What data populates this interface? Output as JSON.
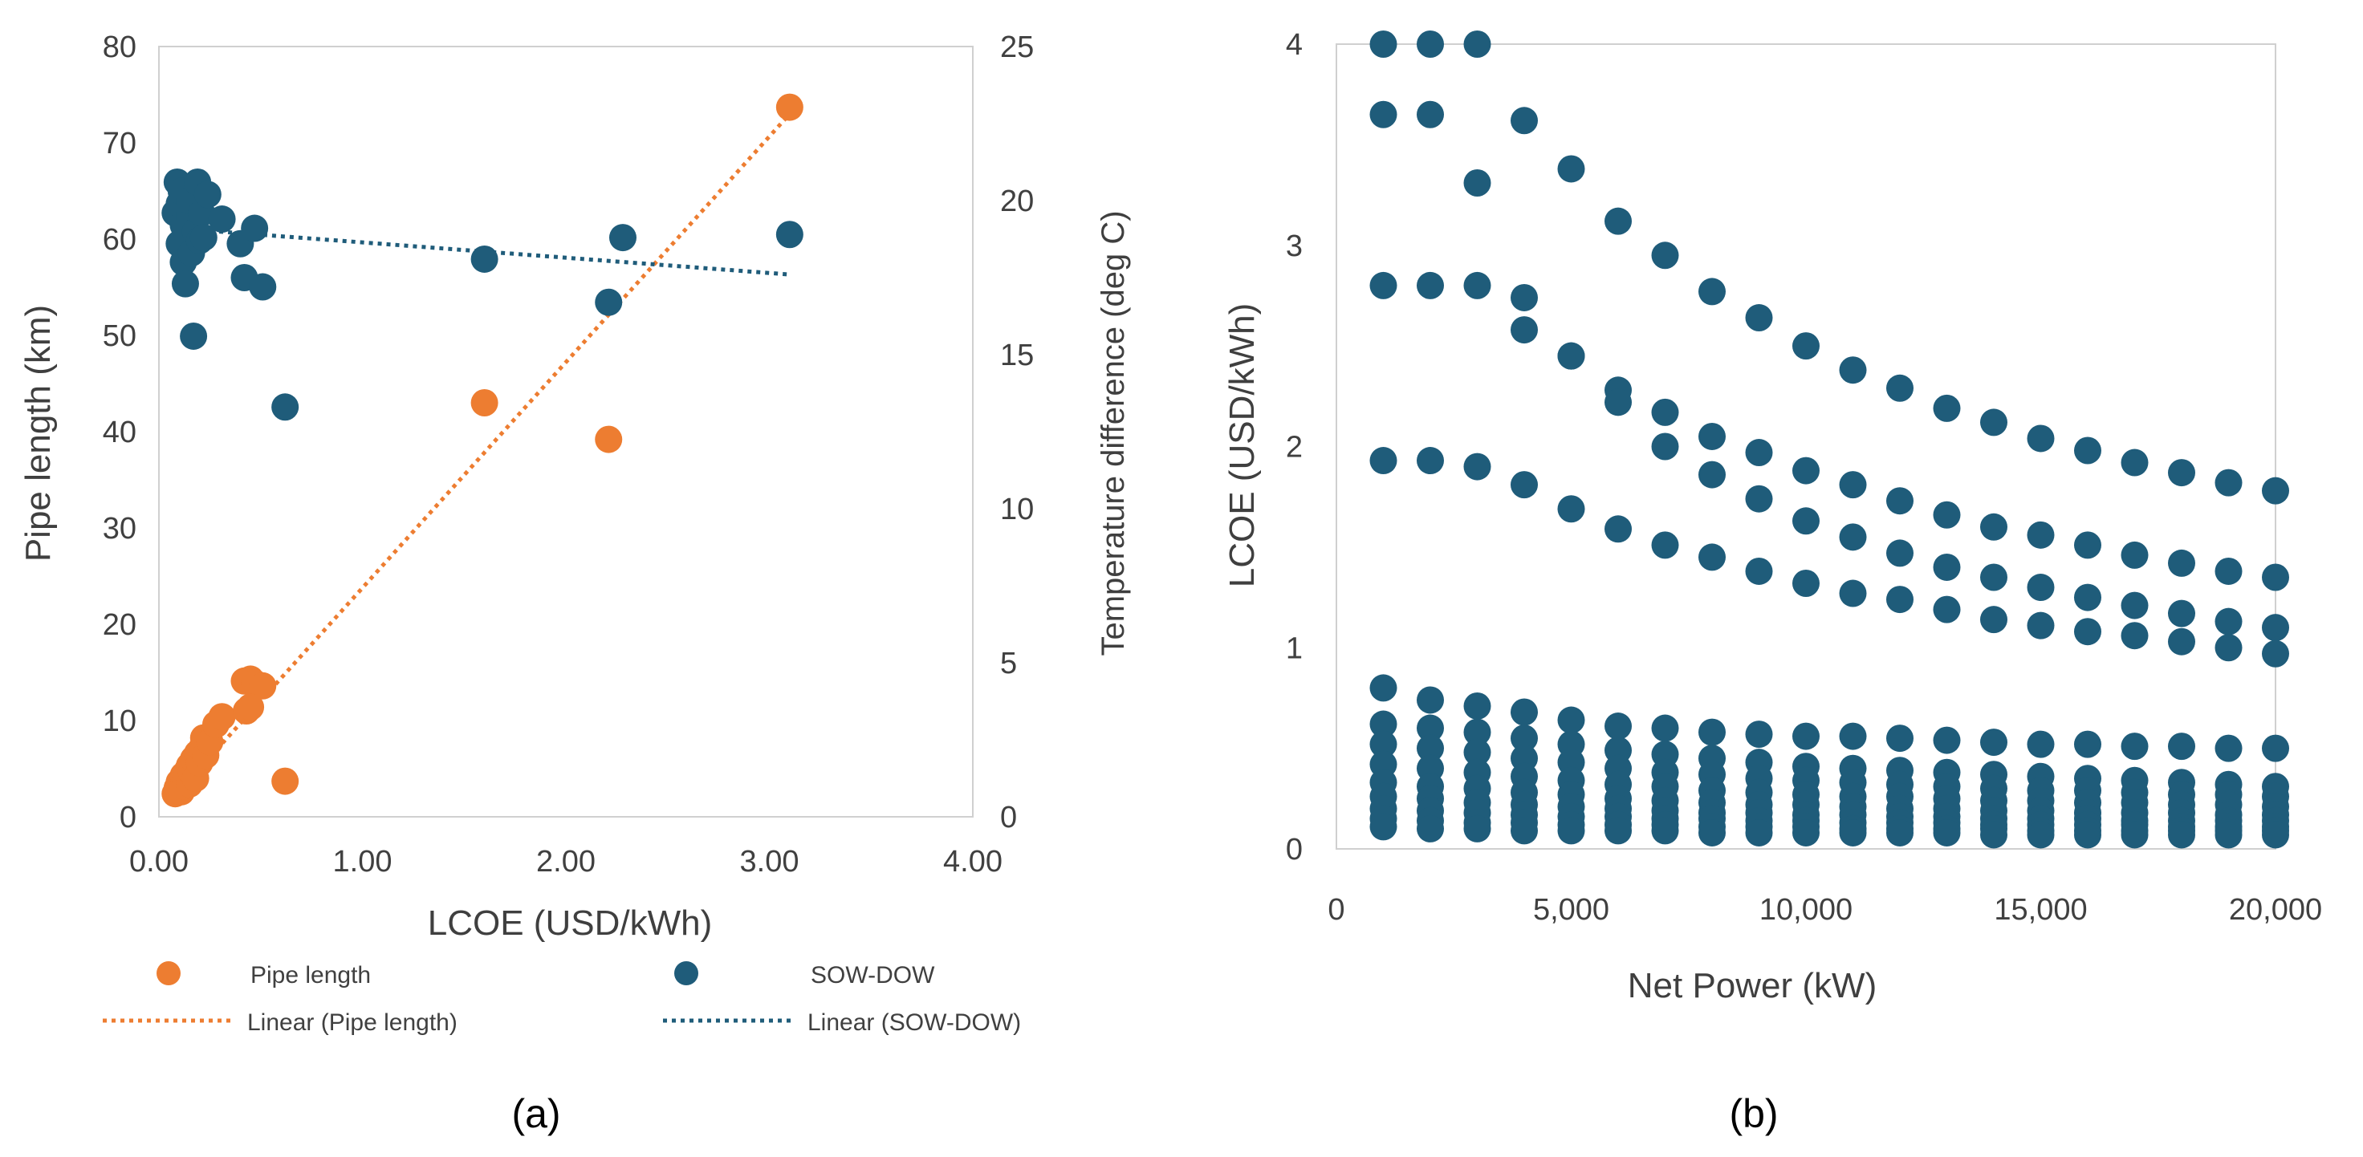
{
  "figure": {
    "captions": [
      "(a)",
      "(b)"
    ],
    "colors": {
      "orange": "#ED7D31",
      "blue": "#1F5C7A",
      "axis": "#d0d0d0",
      "text": "#404040"
    }
  },
  "chart_data": [
    {
      "type": "scatter",
      "panel": "(a)",
      "xlabel": "LCOE (USD/kWh)",
      "ylabel": "Pipe length (km)",
      "y2label": "Temperature difference (deg C)",
      "xlim": [
        0,
        4
      ],
      "ylim": [
        0,
        80
      ],
      "y2lim": [
        0,
        25
      ],
      "x_ticks": [
        "0.00",
        "1.00",
        "2.00",
        "3.00",
        "4.00"
      ],
      "y_ticks": [
        "0",
        "10",
        "20",
        "30",
        "40",
        "50",
        "60",
        "70",
        "80"
      ],
      "y2_ticks": [
        "0",
        "5",
        "10",
        "15",
        "20",
        "25"
      ],
      "grid": false,
      "legend_position": "bottom",
      "series": [
        {
          "name": "Pipe length",
          "axis": "left",
          "color": "#ED7D31",
          "marker": "circle",
          "points": [
            [
              0.08,
              2.4
            ],
            [
              0.09,
              3.0
            ],
            [
              0.1,
              2.7
            ],
            [
              0.1,
              3.6
            ],
            [
              0.11,
              2.6
            ],
            [
              0.12,
              3.2
            ],
            [
              0.12,
              4.3
            ],
            [
              0.13,
              3.9
            ],
            [
              0.14,
              4.8
            ],
            [
              0.15,
              3.4
            ],
            [
              0.15,
              5.3
            ],
            [
              0.16,
              4.6
            ],
            [
              0.17,
              6.0
            ],
            [
              0.18,
              4.0
            ],
            [
              0.19,
              6.6
            ],
            [
              0.2,
              5.6
            ],
            [
              0.21,
              7.1
            ],
            [
              0.22,
              8.2
            ],
            [
              0.23,
              6.4
            ],
            [
              0.25,
              7.8
            ],
            [
              0.28,
              9.6
            ],
            [
              0.31,
              10.4
            ],
            [
              0.42,
              14.1
            ],
            [
              0.45,
              14.3
            ],
            [
              0.47,
              13.9
            ],
            [
              0.51,
              13.6
            ],
            [
              0.43,
              11.0
            ],
            [
              0.45,
              11.4
            ],
            [
              0.62,
              3.7
            ],
            [
              1.6,
              43.0
            ],
            [
              2.21,
              39.2
            ],
            [
              3.1,
              73.7
            ]
          ]
        },
        {
          "name": "SOW-DOW",
          "axis": "right",
          "color": "#1F5C7A",
          "marker": "circle",
          "points": [
            [
              0.08,
              19.6
            ],
            [
              0.09,
              20.6
            ],
            [
              0.1,
              18.6
            ],
            [
              0.1,
              19.9
            ],
            [
              0.11,
              20.3
            ],
            [
              0.12,
              19.2
            ],
            [
              0.12,
              18.0
            ],
            [
              0.13,
              17.3
            ],
            [
              0.14,
              18.9
            ],
            [
              0.15,
              19.5
            ],
            [
              0.15,
              20.0
            ],
            [
              0.16,
              18.3
            ],
            [
              0.17,
              15.6
            ],
            [
              0.18,
              19.0
            ],
            [
              0.19,
              20.6
            ],
            [
              0.2,
              18.7
            ],
            [
              0.21,
              19.6
            ],
            [
              0.22,
              18.8
            ],
            [
              0.24,
              20.2
            ],
            [
              0.31,
              19.4
            ],
            [
              0.4,
              18.6
            ],
            [
              0.42,
              17.5
            ],
            [
              0.47,
              19.1
            ],
            [
              0.51,
              17.2
            ],
            [
              0.62,
              13.3
            ],
            [
              1.6,
              18.1
            ],
            [
              2.21,
              16.7
            ],
            [
              2.28,
              18.8
            ],
            [
              3.1,
              18.9
            ]
          ]
        },
        {
          "name": "Linear (Pipe length)",
          "axis": "left",
          "color": "#ED7D31",
          "style": "dotted",
          "points": [
            [
              0.08,
              2.2
            ],
            [
              3.1,
              73.0
            ]
          ]
        },
        {
          "name": "Linear (SOW-DOW)",
          "axis": "right",
          "color": "#1F5C7A",
          "style": "dotted",
          "points": [
            [
              0.08,
              19.1
            ],
            [
              3.1,
              17.6
            ]
          ]
        }
      ]
    },
    {
      "type": "scatter",
      "panel": "(b)",
      "xlabel": "Net Power (kW)",
      "ylabel": "LCOE (USD/kWh)",
      "xlim": [
        0,
        20000
      ],
      "ylim": [
        0,
        4
      ],
      "x_ticks": [
        "0",
        "5,000",
        "10,000",
        "15,000",
        "20,000"
      ],
      "y_ticks": [
        "0",
        "1",
        "2",
        "3",
        "4"
      ],
      "grid": false,
      "series": [
        {
          "name": "",
          "color": "#1F5C7A",
          "marker": "circle",
          "x": [
            1000,
            2000,
            3000,
            4000,
            5000,
            6000,
            7000,
            8000,
            9000,
            10000,
            11000,
            12000,
            13000,
            14000,
            15000,
            16000,
            17000,
            18000,
            19000,
            20000
          ],
          "curves": [
            [
              4.0,
              4.0,
              4.0,
              3.62,
              3.38,
              3.12,
              2.95,
              2.77,
              2.64,
              2.5,
              2.38,
              2.29,
              2.19,
              2.12,
              2.04,
              1.98,
              1.92,
              1.87,
              1.82,
              1.78
            ],
            [
              3.65,
              3.65,
              3.31,
              2.74,
              2.45,
              2.28,
              2.17,
              2.05,
              1.97,
              1.88,
              1.81,
              1.73,
              1.66,
              1.6,
              1.56,
              1.51,
              1.46,
              1.42,
              1.38,
              1.35
            ],
            [
              2.8,
              2.8,
              2.8,
              2.58,
              2.45,
              2.22,
              2.0,
              1.86,
              1.74,
              1.63,
              1.55,
              1.47,
              1.4,
              1.35,
              1.3,
              1.25,
              1.21,
              1.17,
              1.13,
              1.1
            ],
            [
              1.93,
              1.93,
              1.9,
              1.81,
              1.69,
              1.59,
              1.51,
              1.45,
              1.38,
              1.32,
              1.27,
              1.24,
              1.19,
              1.14,
              1.11,
              1.08,
              1.06,
              1.03,
              1.0,
              0.97
            ],
            [
              0.8,
              0.74,
              0.71,
              0.68,
              0.64,
              0.61,
              0.6,
              0.58,
              0.57,
              0.56,
              0.56,
              0.55,
              0.54,
              0.53,
              0.52,
              0.52,
              0.51,
              0.51,
              0.5,
              0.5
            ],
            [
              0.62,
              0.6,
              0.58,
              0.55,
              0.52,
              0.49,
              0.47,
              0.45,
              0.43,
              0.41,
              0.4,
              0.39,
              0.38,
              0.37,
              0.36,
              0.35,
              0.34,
              0.33,
              0.32,
              0.31
            ],
            [
              0.52,
              0.5,
              0.48,
              0.45,
              0.43,
              0.4,
              0.38,
              0.37,
              0.35,
              0.34,
              0.33,
              0.32,
              0.31,
              0.3,
              0.29,
              0.29,
              0.28,
              0.27,
              0.27,
              0.26
            ],
            [
              0.42,
              0.4,
              0.38,
              0.36,
              0.34,
              0.32,
              0.31,
              0.29,
              0.28,
              0.27,
              0.26,
              0.26,
              0.25,
              0.24,
              0.24,
              0.23,
              0.23,
              0.22,
              0.22,
              0.21
            ],
            [
              0.33,
              0.31,
              0.3,
              0.28,
              0.27,
              0.25,
              0.24,
              0.23,
              0.22,
              0.22,
              0.21,
              0.2,
              0.2,
              0.19,
              0.19,
              0.18,
              0.18,
              0.18,
              0.17,
              0.17
            ],
            [
              0.26,
              0.25,
              0.23,
              0.22,
              0.21,
              0.2,
              0.19,
              0.18,
              0.18,
              0.17,
              0.17,
              0.16,
              0.16,
              0.15,
              0.15,
              0.15,
              0.14,
              0.14,
              0.14,
              0.14
            ],
            [
              0.2,
              0.19,
              0.18,
              0.17,
              0.16,
              0.16,
              0.15,
              0.15,
              0.14,
              0.14,
              0.13,
              0.13,
              0.13,
              0.12,
              0.12,
              0.12,
              0.12,
              0.11,
              0.11,
              0.11
            ],
            [
              0.15,
              0.14,
              0.13,
              0.13,
              0.12,
              0.12,
              0.12,
              0.11,
              0.11,
              0.11,
              0.1,
              0.1,
              0.1,
              0.1,
              0.09,
              0.09,
              0.09,
              0.09,
              0.09,
              0.09
            ],
            [
              0.11,
              0.1,
              0.1,
              0.09,
              0.09,
              0.09,
              0.09,
              0.08,
              0.08,
              0.08,
              0.08,
              0.08,
              0.08,
              0.07,
              0.07,
              0.07,
              0.07,
              0.07,
              0.07,
              0.07
            ]
          ]
        }
      ]
    }
  ]
}
